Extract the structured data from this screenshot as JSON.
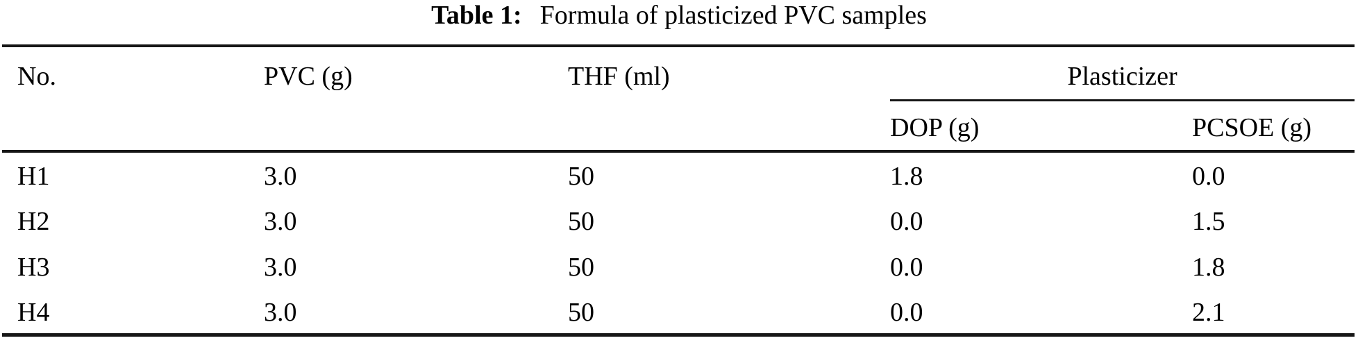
{
  "caption": {
    "label": "Table 1:",
    "text": "Formula of plasticized PVC samples"
  },
  "table": {
    "columns": [
      "No.",
      "PVC (g)",
      "THF (ml)"
    ],
    "group_header": "Plasticizer",
    "sub_columns": [
      "DOP (g)",
      "PCSOE (g)"
    ],
    "rows": [
      [
        "H1",
        "3.0",
        "50",
        "1.8",
        "0.0"
      ],
      [
        "H2",
        "3.0",
        "50",
        "0.0",
        "1.5"
      ],
      [
        "H3",
        "3.0",
        "50",
        "0.0",
        "1.8"
      ],
      [
        "H4",
        "3.0",
        "50",
        "0.0",
        "2.1"
      ]
    ]
  },
  "colors": {
    "text": "#000000",
    "rule": "#161616",
    "background": "#ffffff"
  }
}
